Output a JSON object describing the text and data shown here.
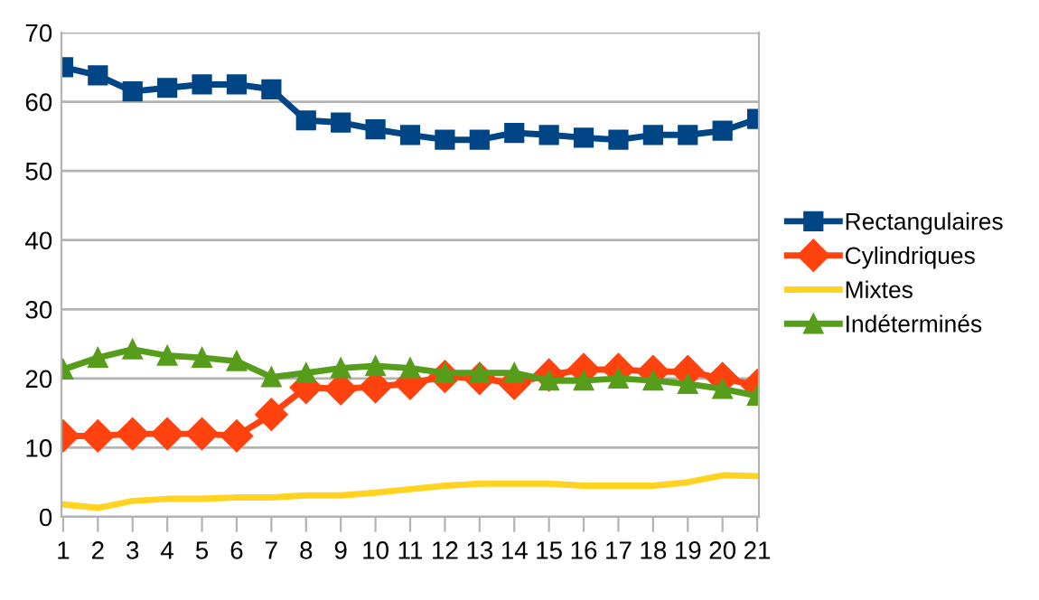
{
  "chart_data": {
    "type": "line",
    "categories": [
      "1",
      "2",
      "3",
      "4",
      "5",
      "6",
      "7",
      "8",
      "9",
      "10",
      "11",
      "12",
      "13",
      "14",
      "15",
      "16",
      "17",
      "18",
      "19",
      "20",
      "21"
    ],
    "series": [
      {
        "name": "Rectangulaires",
        "color": "#004586",
        "marker": "square",
        "values": [
          65,
          63.8,
          61.5,
          62,
          62.5,
          62.5,
          61.8,
          57.3,
          57,
          56,
          55.2,
          54.5,
          54.5,
          55.5,
          55.2,
          54.8,
          54.5,
          55.2,
          55.2,
          55.8,
          57.5
        ]
      },
      {
        "name": "Cylindriques",
        "color": "#ff420e",
        "marker": "diamond",
        "values": [
          11.7,
          11.7,
          12,
          12,
          12,
          11.7,
          14.8,
          18.7,
          18.5,
          18.8,
          19.3,
          20.3,
          20,
          19.3,
          20.5,
          21.3,
          21.3,
          21,
          21,
          20,
          19
        ]
      },
      {
        "name": "Mixtes",
        "color": "#ffd320",
        "marker": "none",
        "values": [
          1.8,
          1.3,
          2.3,
          2.6,
          2.6,
          2.8,
          2.8,
          3.1,
          3.1,
          3.5,
          4,
          4.5,
          4.8,
          4.8,
          4.8,
          4.5,
          4.5,
          4.5,
          5,
          6,
          5.9
        ]
      },
      {
        "name": "Indéterminés",
        "color": "#579d1c",
        "marker": "triangle",
        "values": [
          21.3,
          23,
          24.2,
          23.3,
          23,
          22.5,
          20.2,
          20.8,
          21.5,
          21.8,
          21.5,
          20.8,
          20.8,
          20.8,
          19.7,
          19.7,
          20,
          19.7,
          19.2,
          18.5,
          17.5
        ]
      }
    ],
    "ylim": [
      0,
      70
    ],
    "yticks": [
      0,
      10,
      20,
      30,
      40,
      50,
      60,
      70
    ],
    "grid": "y",
    "legend": "right"
  }
}
